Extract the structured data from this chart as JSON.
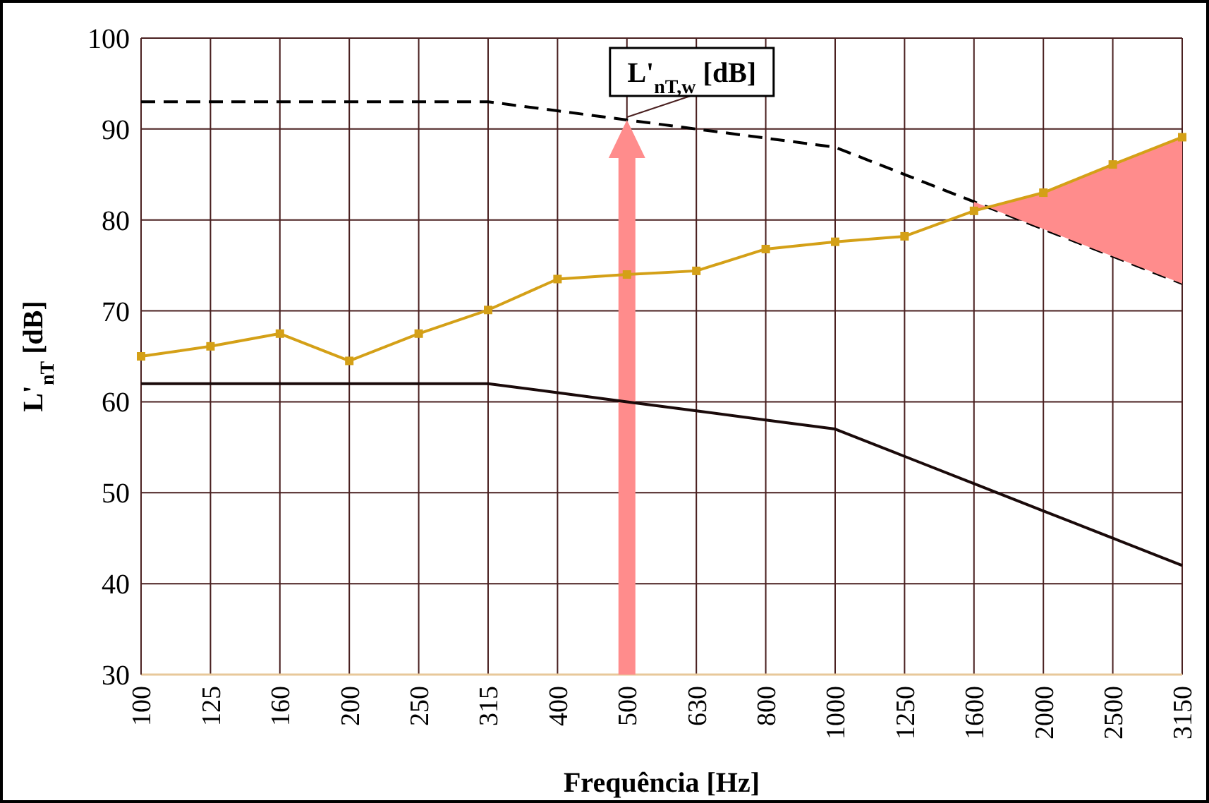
{
  "chart_data": {
    "type": "line",
    "xlabel": "Frequência [Hz]",
    "ylabel": "L'$_{nT}$ [dB]",
    "categories": [
      "100",
      "125",
      "160",
      "200",
      "250",
      "315",
      "400",
      "500",
      "630",
      "800",
      "1000",
      "1250",
      "1600",
      "2000",
      "2500",
      "3150"
    ],
    "ylim": [
      30,
      100
    ],
    "yticks": [
      30,
      40,
      50,
      60,
      70,
      80,
      90,
      100
    ],
    "grid": true,
    "ref_lines": [
      {
        "axis": "x",
        "value": "500",
        "color": "#ff8c8c"
      }
    ],
    "series": [
      {
        "color": "#000000",
        "line_style": "dashed",
        "marker": "none",
        "values": [
          93,
          93,
          93,
          93,
          93,
          93,
          92,
          91,
          90,
          89,
          88,
          85,
          82,
          79,
          76,
          73
        ]
      },
      {
        "color": "#1a0a0a",
        "line_style": "solid",
        "marker": "none",
        "values": [
          62,
          62,
          62,
          62,
          62,
          62,
          61,
          60,
          59,
          58,
          57,
          54,
          51,
          48,
          45,
          42
        ]
      },
      {
        "color": "#d4a017",
        "line_style": "solid",
        "marker": "square",
        "values": [
          65,
          66.1,
          67.5,
          64.5,
          67.5,
          70.1,
          73.5,
          74,
          74.4,
          76.8,
          77.6,
          78.2,
          81,
          83,
          86.1,
          89.1
        ],
        "lower": [
          null,
          null,
          null,
          null,
          null,
          null,
          null,
          null,
          null,
          null,
          null,
          null,
          82,
          79,
          76,
          73
        ],
        "upper": [
          null,
          null,
          null,
          null,
          null,
          null,
          null,
          null,
          null,
          null,
          null,
          null,
          81,
          83,
          86.1,
          89.1
        ]
      }
    ],
    "annotations": [
      {
        "text": "L'$_{nT,w}$ [dB]",
        "x": "500",
        "y": 91
      }
    ]
  }
}
